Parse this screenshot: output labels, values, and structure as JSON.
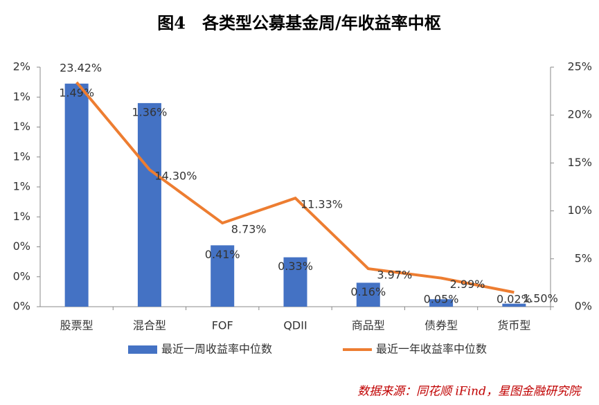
{
  "chart_data": {
    "type": "bar",
    "title": "图4　各类型公募基金周/年收益率中枢",
    "source": "数据来源：同花顺 iFind，星图金融研究院",
    "categories": [
      "股票型",
      "混合型",
      "FOF",
      "QDII",
      "商品型",
      "债券型",
      "货币型"
    ],
    "series": [
      {
        "name": "最近一周收益率中位数",
        "type": "bar",
        "color": "#4472c4",
        "values": [
          1.49,
          1.36,
          0.41,
          0.33,
          0.16,
          0.05,
          0.02
        ],
        "value_labels": [
          "1.49%",
          "1.36%",
          "0.41%",
          "0.33%",
          "0.16%",
          "0.05%",
          "0.02%"
        ]
      },
      {
        "name": "最近一年收益率中位数",
        "type": "line",
        "axis": "y2",
        "color": "#ed7d31",
        "values": [
          23.42,
          14.3,
          8.73,
          11.33,
          3.97,
          2.99,
          1.5
        ],
        "value_labels": [
          "23.42%",
          "14.30%",
          "8.73%",
          "11.33%",
          "3.97%",
          "2.99%",
          "1.50%"
        ]
      }
    ],
    "ylim": [
      0,
      1.6
    ],
    "yticks": [
      {
        "value": 0,
        "label": "0%"
      },
      {
        "value": 0.2,
        "label": "0%"
      },
      {
        "value": 0.4,
        "label": "0%"
      },
      {
        "value": 0.6,
        "label": "1%"
      },
      {
        "value": 0.8,
        "label": "1%"
      },
      {
        "value": 1.0,
        "label": "1%"
      },
      {
        "value": 1.2,
        "label": "1%"
      },
      {
        "value": 1.4,
        "label": "1%"
      },
      {
        "value": 1.6,
        "label": "2%"
      }
    ],
    "y2lim": [
      0,
      25
    ],
    "y2ticks": [
      {
        "value": 0,
        "label": "0%"
      },
      {
        "value": 5,
        "label": "5%"
      },
      {
        "value": 10,
        "label": "10%"
      },
      {
        "value": 15,
        "label": "15%"
      },
      {
        "value": 20,
        "label": "20%"
      },
      {
        "value": 25,
        "label": "25%"
      }
    ],
    "legend": "bottom"
  }
}
